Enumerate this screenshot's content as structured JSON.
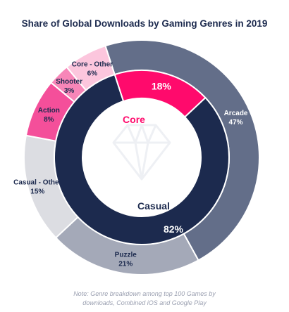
{
  "title": "Share of Global Downloads by Gaming Genres in 2019",
  "note_line1": "Note: Genre breakdown among top 100 Games by",
  "note_line2": "downloads, Combined iOS and Google Play",
  "chart_data": {
    "type": "pie",
    "inner": [
      {
        "name": "Core",
        "value": 18,
        "label": "18%",
        "color": "#ff0a6c"
      },
      {
        "name": "Casual",
        "value": 82,
        "label": "82%",
        "color": "#1c2a4e"
      }
    ],
    "outer": [
      {
        "name": "Arcade",
        "value": 47,
        "label": "47%",
        "color": "#636e89"
      },
      {
        "name": "Puzzle",
        "value": 21,
        "label": "21%",
        "color": "#a4a9b8"
      },
      {
        "name": "Casual - Other",
        "value": 15,
        "label": "15%",
        "color": "#dcdde2"
      },
      {
        "name": "Action",
        "value": 8,
        "label": "8%",
        "color": "#f44f9a"
      },
      {
        "name": "Shooter",
        "value": 3,
        "label": "3%",
        "color": "#f786b8"
      },
      {
        "name": "Core - Other",
        "value": 6,
        "label": "6%",
        "color": "#fcc6dd"
      }
    ]
  }
}
